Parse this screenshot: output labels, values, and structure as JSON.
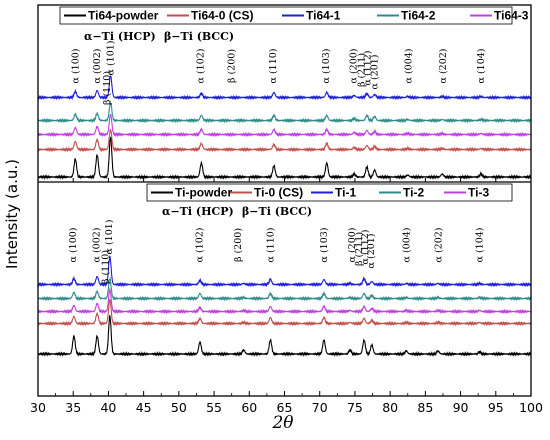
{
  "chart_data": {
    "type": "line",
    "xlabel": "2θ",
    "ylabel": "Intensity (a.u.)",
    "xlim": [
      30,
      100
    ],
    "x_ticks": [
      "30",
      "35",
      "40",
      "45",
      "50",
      "55",
      "60",
      "65",
      "70",
      "75",
      "80",
      "85",
      "90",
      "95",
      "100"
    ],
    "panels": [
      {
        "legend": [
          {
            "name": "Ti64-powder",
            "color": "#000000"
          },
          {
            "name": "Ti64-0 (CS)",
            "color": "#c0504d"
          },
          {
            "name": "Ti64-1",
            "color": "#1f1fd6"
          },
          {
            "name": "Ti64-2",
            "color": "#2e8b8b"
          },
          {
            "name": "Ti64-3",
            "color": "#c040e0"
          }
        ],
        "phase_labels": [
          "α−Ti (HCP)",
          "β−Ti (BCC)"
        ],
        "peak_labels": [
          {
            "label": "α (100)",
            "x": 35.3
          },
          {
            "label": "α (002)",
            "x": 38.4
          },
          {
            "label": "α (101)",
            "x": 40.3
          },
          {
            "label": "β (110)",
            "x": 39.8
          },
          {
            "label": "α (102)",
            "x": 53.1
          },
          {
            "label": "β (200)",
            "x": 57.5
          },
          {
            "label": "α (110)",
            "x": 63.4
          },
          {
            "label": "α (103)",
            "x": 70.9
          },
          {
            "label": "α (200)",
            "x": 74.8
          },
          {
            "label": "β (211)",
            "x": 75.9
          },
          {
            "label": "α (112)",
            "x": 76.8
          },
          {
            "label": "α (201)",
            "x": 77.8
          },
          {
            "label": "α (004)",
            "x": 82.6
          },
          {
            "label": "α (202)",
            "x": 87.5
          },
          {
            "label": "α (104)",
            "x": 92.9
          }
        ],
        "peaks": [
          {
            "x": 35.3,
            "h": [
              18,
              8,
              6,
              6,
              7
            ]
          },
          {
            "x": 38.4,
            "h": [
              22,
              10,
              7,
              7,
              8
            ]
          },
          {
            "x": 40.3,
            "h": [
              40,
              20,
              22,
              18,
              20
            ]
          },
          {
            "x": 53.2,
            "h": [
              14,
              6,
              4,
              5,
              5
            ]
          },
          {
            "x": 63.5,
            "h": [
              11,
              5,
              5,
              5,
              5
            ]
          },
          {
            "x": 71.0,
            "h": [
              14,
              6,
              5,
              5,
              5
            ]
          },
          {
            "x": 74.9,
            "h": [
              3,
              2,
              2,
              2,
              2
            ]
          },
          {
            "x": 76.7,
            "h": [
              10,
              4,
              4,
              5,
              4
            ]
          },
          {
            "x": 77.8,
            "h": [
              7,
              3,
              3,
              4,
              3
            ]
          },
          {
            "x": 82.5,
            "h": [
              2,
              1,
              1,
              1,
              1
            ]
          },
          {
            "x": 87.4,
            "h": [
              3,
              1,
              1,
              1,
              1
            ]
          },
          {
            "x": 92.9,
            "h": [
              3,
              1,
              1,
              1,
              1
            ]
          }
        ]
      },
      {
        "legend": [
          {
            "name": "Ti-powder",
            "color": "#000000"
          },
          {
            "name": "Ti-0 (CS)",
            "color": "#c0504d"
          },
          {
            "name": "Ti-1",
            "color": "#1f1fd6"
          },
          {
            "name": "Ti-2",
            "color": "#2e8b8b"
          },
          {
            "name": "Ti-3",
            "color": "#c040e0"
          }
        ],
        "phase_labels": [
          "α−Ti (HCP)",
          "β−Ti (BCC)"
        ],
        "peak_labels": [
          {
            "label": "α (100)",
            "x": 35.0
          },
          {
            "label": "α (002)",
            "x": 38.3
          },
          {
            "label": "α (101)",
            "x": 40.1
          },
          {
            "label": "β (110)",
            "x": 39.6
          },
          {
            "label": "α (102)",
            "x": 52.9
          },
          {
            "label": "β (200)",
            "x": 58.4
          },
          {
            "label": "α (110)",
            "x": 63.0
          },
          {
            "label": "α (103)",
            "x": 70.6
          },
          {
            "label": "α (200)",
            "x": 74.6
          },
          {
            "label": "β (211)",
            "x": 75.6
          },
          {
            "label": "α (112)",
            "x": 76.4
          },
          {
            "label": "α (201)",
            "x": 77.3
          },
          {
            "label": "α (004)",
            "x": 82.3
          },
          {
            "label": "α (202)",
            "x": 86.9
          },
          {
            "label": "α (104)",
            "x": 92.7
          }
        ],
        "peaks": [
          {
            "x": 35.1,
            "h": [
              18,
              7,
              6,
              6,
              6
            ]
          },
          {
            "x": 38.4,
            "h": [
              18,
              10,
              8,
              7,
              8
            ]
          },
          {
            "x": 40.2,
            "h": [
              38,
              24,
              28,
              20,
              22
            ]
          },
          {
            "x": 53.0,
            "h": [
              12,
              5,
              4,
              5,
              4
            ]
          },
          {
            "x": 59.2,
            "h": [
              4,
              1,
              1,
              1,
              1
            ]
          },
          {
            "x": 63.0,
            "h": [
              14,
              6,
              5,
              5,
              5
            ]
          },
          {
            "x": 70.6,
            "h": [
              14,
              6,
              5,
              5,
              5
            ]
          },
          {
            "x": 74.3,
            "h": [
              4,
              1,
              1,
              1,
              1
            ]
          },
          {
            "x": 76.3,
            "h": [
              14,
              5,
              6,
              5,
              5
            ]
          },
          {
            "x": 77.4,
            "h": [
              9,
              3,
              3,
              3,
              3
            ]
          },
          {
            "x": 82.3,
            "h": [
              3,
              1,
              1,
              1,
              1
            ]
          },
          {
            "x": 86.8,
            "h": [
              3,
              1,
              1,
              1,
              1
            ]
          },
          {
            "x": 92.7,
            "h": [
              2,
              1,
              1,
              1,
              1
            ]
          }
        ]
      }
    ]
  }
}
